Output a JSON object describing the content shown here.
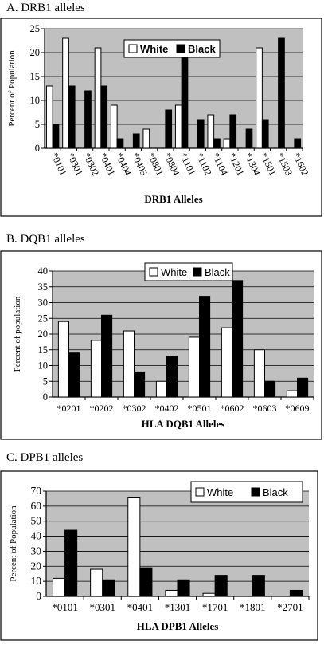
{
  "panels": [
    {
      "heading": "A. DRB1 alleles"
    },
    {
      "heading": "B. DQB1 alleles"
    },
    {
      "heading": "C. DPB1 alleles"
    }
  ],
  "chart_data": [
    {
      "type": "bar",
      "categories": [
        "*0101",
        "*0301",
        "*0302",
        "*0401",
        "*0404",
        "*0405",
        "*0801",
        "*0804",
        "*1101",
        "*1102",
        "*1104",
        "*1201",
        "*1304",
        "*1501",
        "*1503",
        "*1602"
      ],
      "series": [
        {
          "name": "White",
          "values": [
            13,
            23,
            0,
            21,
            9,
            0,
            4,
            0,
            9,
            0,
            7,
            2,
            0,
            21,
            0,
            0
          ],
          "color": "#ffffff"
        },
        {
          "name": "Black",
          "values": [
            5,
            13,
            12,
            13,
            2,
            3,
            0,
            8,
            19,
            6,
            2,
            7,
            4,
            6,
            23,
            2
          ],
          "color": "#000000"
        }
      ],
      "xlabel": "DRB1 Alleles",
      "ylabel": "Percent of Population",
      "ylim": [
        0,
        25
      ],
      "yticks": [
        0,
        5,
        10,
        15,
        20,
        25
      ],
      "grid": true,
      "legend": "top-center",
      "tick_rotation": "rotated",
      "plot_bg": "#c0c0c0"
    },
    {
      "type": "bar",
      "categories": [
        "*0201",
        "*0202",
        "*0302",
        "*0402",
        "*0501",
        "*0602",
        "*0603",
        "*0609"
      ],
      "series": [
        {
          "name": "White",
          "values": [
            24,
            18,
            21,
            5,
            19,
            22,
            15,
            2
          ],
          "color": "#ffffff"
        },
        {
          "name": "Black",
          "values": [
            14,
            26,
            8,
            13,
            32,
            37,
            5,
            6
          ],
          "color": "#000000"
        }
      ],
      "xlabel": "HLA DQB1 Alleles",
      "ylabel": "Percent of population",
      "ylim": [
        0,
        40
      ],
      "yticks": [
        0,
        5,
        10,
        15,
        20,
        25,
        30,
        35,
        40
      ],
      "grid": true,
      "legend": "top-center",
      "tick_rotation": "none",
      "plot_bg": "#c0c0c0"
    },
    {
      "type": "bar",
      "categories": [
        "*0101",
        "*0301",
        "*0401",
        "*1301",
        "*1701",
        "*1801",
        "*2701"
      ],
      "series": [
        {
          "name": "White",
          "values": [
            12,
            18,
            66,
            4,
            2,
            0,
            0
          ],
          "color": "#ffffff"
        },
        {
          "name": "Black",
          "values": [
            44,
            11,
            19,
            11,
            14,
            14,
            4
          ],
          "color": "#000000"
        }
      ],
      "xlabel": "HLA DPB1 Alleles",
      "ylabel": "Percent of Population",
      "ylim": [
        0,
        70
      ],
      "yticks": [
        0,
        10,
        20,
        30,
        40,
        50,
        60,
        70
      ],
      "grid": true,
      "legend": "top-right",
      "tick_rotation": "none",
      "plot_bg": "#c0c0c0"
    }
  ]
}
